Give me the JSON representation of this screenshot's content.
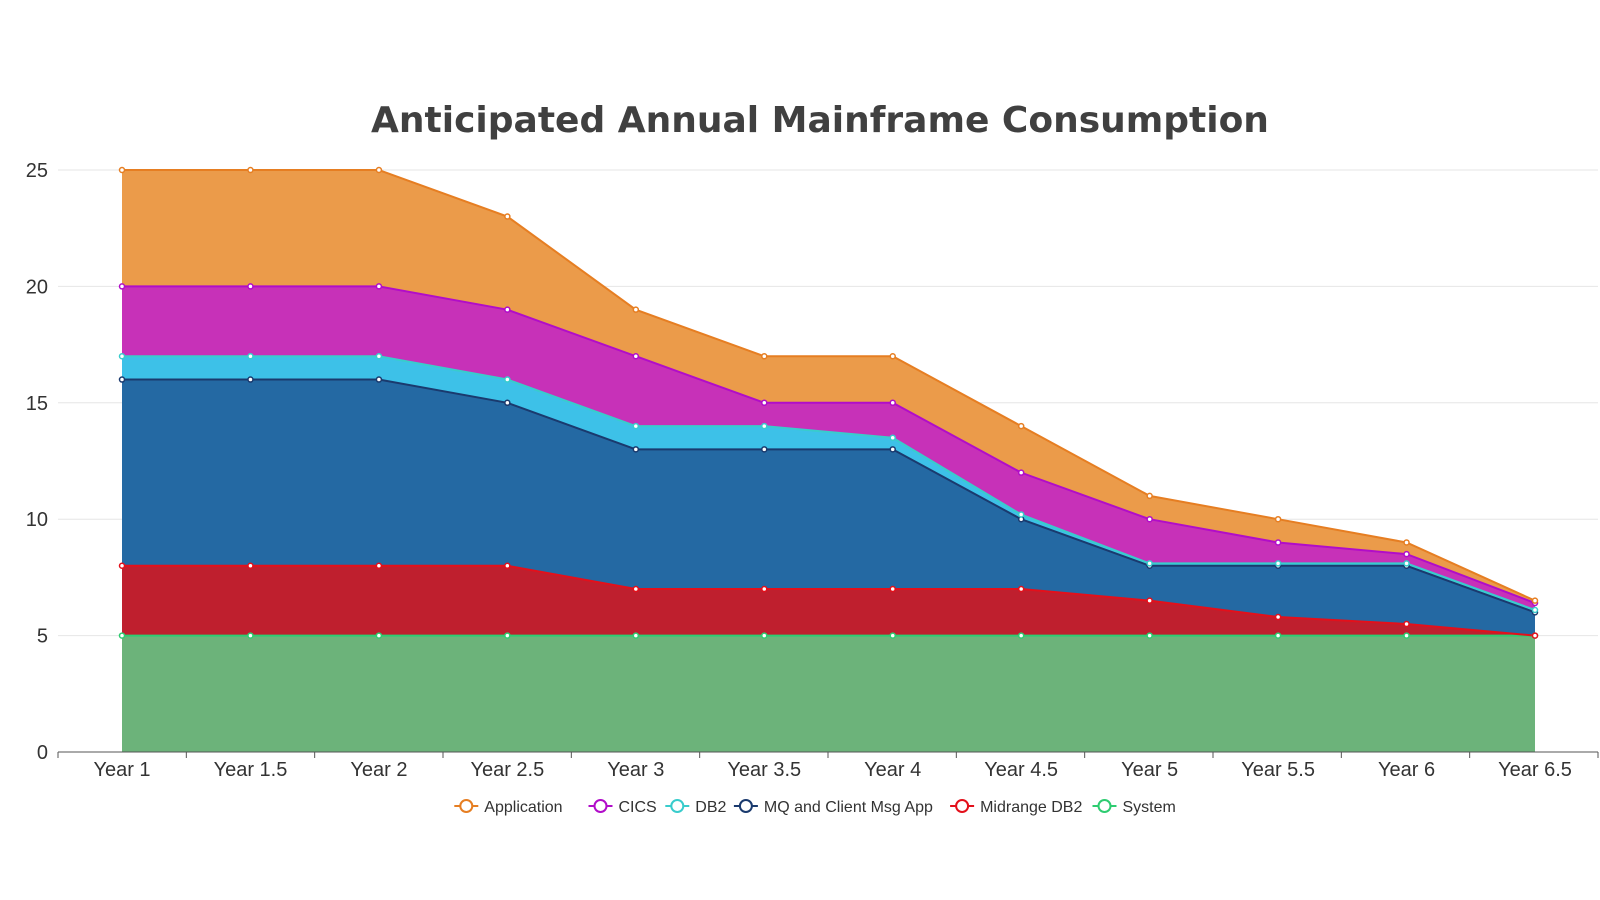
{
  "chart_data": {
    "type": "area",
    "stacked": true,
    "title": "Anticipated Annual Mainframe Consumption",
    "xlabel": "",
    "ylabel": "",
    "ylim": [
      0,
      25
    ],
    "yticks": [
      0,
      5,
      10,
      15,
      20,
      25
    ],
    "grid": true,
    "legend_position": "bottom",
    "categories": [
      "Year 1",
      "Year 1.5",
      "Year 2",
      "Year 2.5",
      "Year 3",
      "Year 3.5",
      "Year 4",
      "Year 4.5",
      "Year 5",
      "Year 5.5",
      "Year 6",
      "Year 6.5"
    ],
    "series": [
      {
        "name": "Application",
        "line_color": "#e67e22",
        "fill_color": "#eb9b4a",
        "values": [
          5,
          5,
          5,
          4,
          2,
          2,
          2,
          2,
          1,
          1,
          0.5,
          0.1
        ]
      },
      {
        "name": "CICS",
        "line_color": "#b10dc9",
        "fill_color": "#c731b8",
        "values": [
          3,
          3,
          3,
          3,
          3,
          1,
          1.5,
          1.8,
          1.9,
          0.9,
          0.4,
          0.3
        ]
      },
      {
        "name": "DB2",
        "line_color": "#39cccc",
        "fill_color": "#3dc1e8",
        "values": [
          1,
          1,
          1,
          1,
          1,
          1,
          0.5,
          0.2,
          0.1,
          0.1,
          0.1,
          0.1
        ]
      },
      {
        "name": "MQ and Client Msg App",
        "line_color": "#1a3a6e",
        "fill_color": "#2469a3",
        "values": [
          8,
          8,
          8,
          7,
          6,
          6,
          6,
          3,
          1.5,
          2.2,
          2.5,
          1
        ]
      },
      {
        "name": "Midrange DB2",
        "line_color": "#e3101b",
        "fill_color": "#bf1f2e",
        "values": [
          3,
          3,
          3,
          3,
          2,
          2,
          2,
          2,
          1.5,
          0.8,
          0.5,
          0
        ]
      },
      {
        "name": "System",
        "line_color": "#2ecc71",
        "fill_color": "#6cb37a",
        "values": [
          5,
          5,
          5,
          5,
          5,
          5,
          5,
          5,
          5,
          5,
          5,
          5
        ]
      }
    ]
  }
}
